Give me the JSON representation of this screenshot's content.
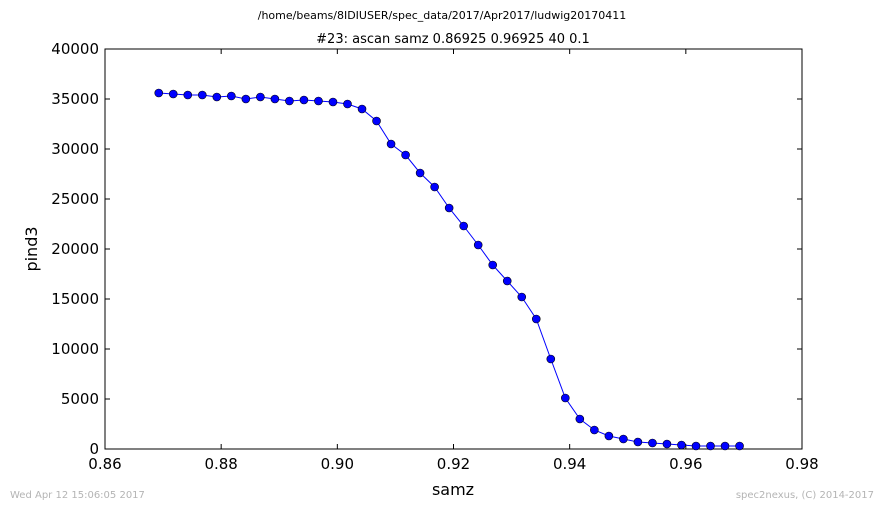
{
  "chart_data": {
    "type": "line",
    "suptitle": "/home/beams/8IDIUSER/spec_data/2017/Apr2017/ludwig20170411",
    "title": "#23: ascan  samz 0.86925 0.96925  40 0.1",
    "xlabel": "samz",
    "ylabel": "pind3",
    "xlim": [
      0.86,
      0.98
    ],
    "ylim": [
      0,
      40000
    ],
    "xticks": [
      "0.86",
      "0.88",
      "0.90",
      "0.92",
      "0.94",
      "0.96",
      "0.98"
    ],
    "yticks": [
      "0",
      "5000",
      "10000",
      "15000",
      "20000",
      "25000",
      "30000",
      "35000",
      "40000"
    ],
    "grid": false,
    "color": "#0000ff",
    "x": [
      0.86925,
      0.87175,
      0.87425,
      0.87675,
      0.87925,
      0.88175,
      0.88425,
      0.88675,
      0.88925,
      0.89175,
      0.89425,
      0.89675,
      0.89925,
      0.90175,
      0.90425,
      0.90675,
      0.90925,
      0.91175,
      0.91425,
      0.91675,
      0.91925,
      0.92175,
      0.92425,
      0.92675,
      0.92925,
      0.93175,
      0.93425,
      0.93675,
      0.93925,
      0.94175,
      0.94425,
      0.94675,
      0.94925,
      0.95175,
      0.95425,
      0.95675,
      0.95925,
      0.96175,
      0.96425,
      0.96675,
      0.96925
    ],
    "y": [
      35600,
      35500,
      35400,
      35400,
      35200,
      35300,
      35000,
      35200,
      35000,
      34800,
      34900,
      34800,
      34700,
      34500,
      34000,
      32800,
      30500,
      29400,
      27600,
      26200,
      24100,
      22300,
      20400,
      18400,
      16800,
      15200,
      13000,
      9000,
      5100,
      3000,
      1900,
      1300,
      1000,
      700,
      600,
      500,
      400,
      300,
      300,
      300,
      300
    ]
  },
  "footer": {
    "timestamp": "Wed Apr 12 15:06:05 2017",
    "credit": "spec2nexus, (C) 2014-2017"
  }
}
